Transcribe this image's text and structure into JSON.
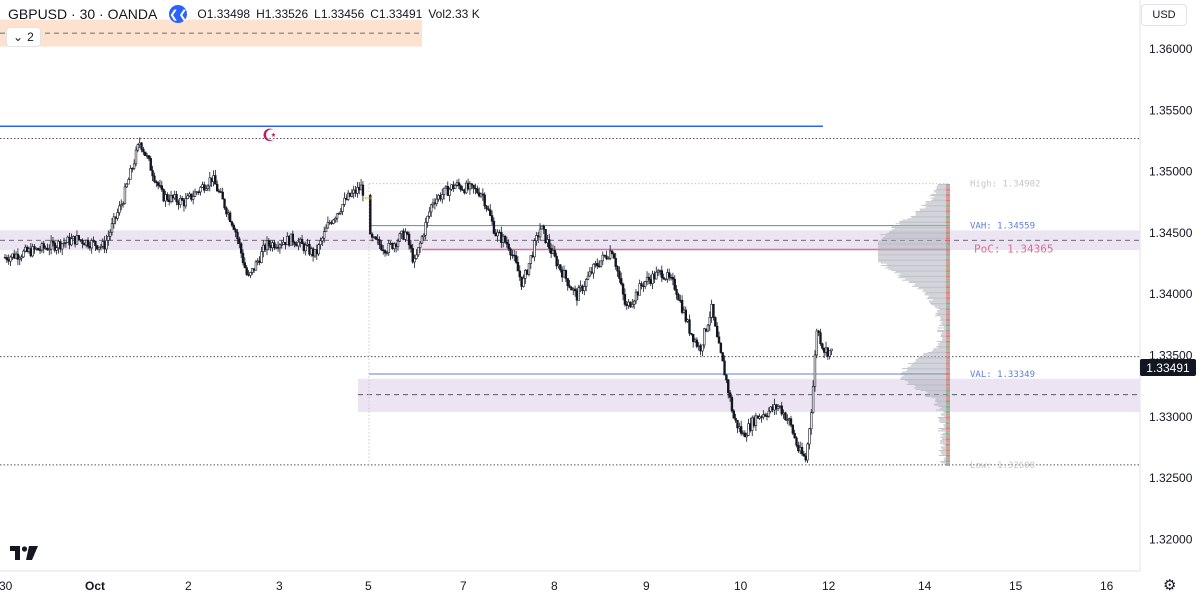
{
  "header": {
    "symbol": "GBPUSD · 30 · OANDA",
    "ohlc": [
      {
        "k": "O",
        "v": "1.33498"
      },
      {
        "k": "H",
        "v": "1.33526"
      },
      {
        "k": "L",
        "v": "1.33456"
      },
      {
        "k": "C",
        "v": "1.33491"
      }
    ],
    "vol_label": "Vol",
    "vol_value": "2.33 K",
    "indicator_count": "2",
    "currency": "USD"
  },
  "price_axis": {
    "ticks": [
      "1.36000",
      "1.35500",
      "1.35000",
      "1.34500",
      "1.34000",
      "1.33500",
      "1.33000",
      "1.32500",
      "1.32000"
    ],
    "current_price": "1.33491"
  },
  "time_axis": {
    "labels": [
      "30",
      "Oct",
      "2",
      "3",
      "5",
      "7",
      "8",
      "9",
      "10",
      "12",
      "14",
      "15",
      "16"
    ]
  },
  "volume_profile": {
    "high_label": "High: 1.34902",
    "vah_label": "VAH: 1.34559",
    "poc_label": "PoC: 1.34365",
    "val_label": "VAL: 1.33349",
    "low_label": "Low: 1.32608"
  },
  "colors": {
    "background": "#ffffff",
    "candle": "#131722",
    "blue_line": "#2962ff",
    "vah_val": "#5b7fd6",
    "poc": "#d87093",
    "supply_zone": "#fde3cf",
    "range_zone": "#ece3f3",
    "profile_bar": "#b2b5be"
  },
  "chart_data": {
    "type": "candlestick",
    "symbol": "GBPUSD",
    "interval": "30",
    "source": "OANDA",
    "current_price": 1.33491,
    "ylim": [
      1.3175,
      1.364
    ],
    "levels": {
      "horizontal_blue": 1.3537,
      "dotted_upper": 1.3527,
      "dotted_current": 1.33491,
      "dotted_lower": 1.32608,
      "vah": 1.34559,
      "poc": 1.34365,
      "val": 1.33349,
      "profile_high": 1.34902,
      "profile_low": 1.32608
    },
    "zones": [
      {
        "name": "supply",
        "top": 1.3624,
        "bottom": 1.3602,
        "mid": 1.3613
      },
      {
        "name": "range_high",
        "top": 1.3452,
        "bottom": 1.3436,
        "mid": 1.3444
      },
      {
        "name": "range_low",
        "top": 1.3331,
        "bottom": 1.3304,
        "mid": 1.3318
      }
    ],
    "price_path": [
      [
        0,
        1.343
      ],
      [
        0.4,
        1.3437
      ],
      [
        0.8,
        1.3445
      ],
      [
        1.1,
        1.3439
      ],
      [
        1.3,
        1.3475
      ],
      [
        1.5,
        1.3525
      ],
      [
        1.75,
        1.348
      ],
      [
        2.0,
        1.3475
      ],
      [
        2.3,
        1.3495
      ],
      [
        2.55,
        1.3455
      ],
      [
        2.7,
        1.3412
      ],
      [
        2.9,
        1.344
      ],
      [
        3.2,
        1.3445
      ],
      [
        3.45,
        1.3432
      ],
      [
        3.6,
        1.3458
      ],
      [
        3.8,
        1.3478
      ],
      [
        3.97,
        1.3488
      ],
      [
        4.05,
        1.3445
      ],
      [
        4.25,
        1.3437
      ],
      [
        4.45,
        1.345
      ],
      [
        4.55,
        1.3425
      ],
      [
        4.75,
        1.3476
      ],
      [
        5.0,
        1.3489
      ],
      [
        5.3,
        1.3483
      ],
      [
        5.45,
        1.345
      ],
      [
        5.6,
        1.344
      ],
      [
        5.75,
        1.3408
      ],
      [
        5.95,
        1.3455
      ],
      [
        6.1,
        1.343
      ],
      [
        6.35,
        1.3398
      ],
      [
        6.55,
        1.3422
      ],
      [
        6.75,
        1.3437
      ],
      [
        6.9,
        1.3388
      ],
      [
        7.1,
        1.341
      ],
      [
        7.3,
        1.3418
      ],
      [
        7.45,
        1.3406
      ],
      [
        7.6,
        1.3372
      ],
      [
        7.72,
        1.3355
      ],
      [
        7.85,
        1.3388
      ],
      [
        7.92,
        1.336
      ],
      [
        8.0,
        1.3335
      ],
      [
        8.1,
        1.3298
      ],
      [
        8.2,
        1.3285
      ],
      [
        8.35,
        1.33
      ],
      [
        8.5,
        1.3305
      ],
      [
        8.6,
        1.3309
      ],
      [
        8.72,
        1.3295
      ],
      [
        8.82,
        1.3272
      ],
      [
        8.9,
        1.3265
      ],
      [
        8.97,
        1.3315
      ],
      [
        9.02,
        1.3372
      ],
      [
        9.1,
        1.3355
      ],
      [
        9.2,
        1.3352
      ]
    ]
  }
}
